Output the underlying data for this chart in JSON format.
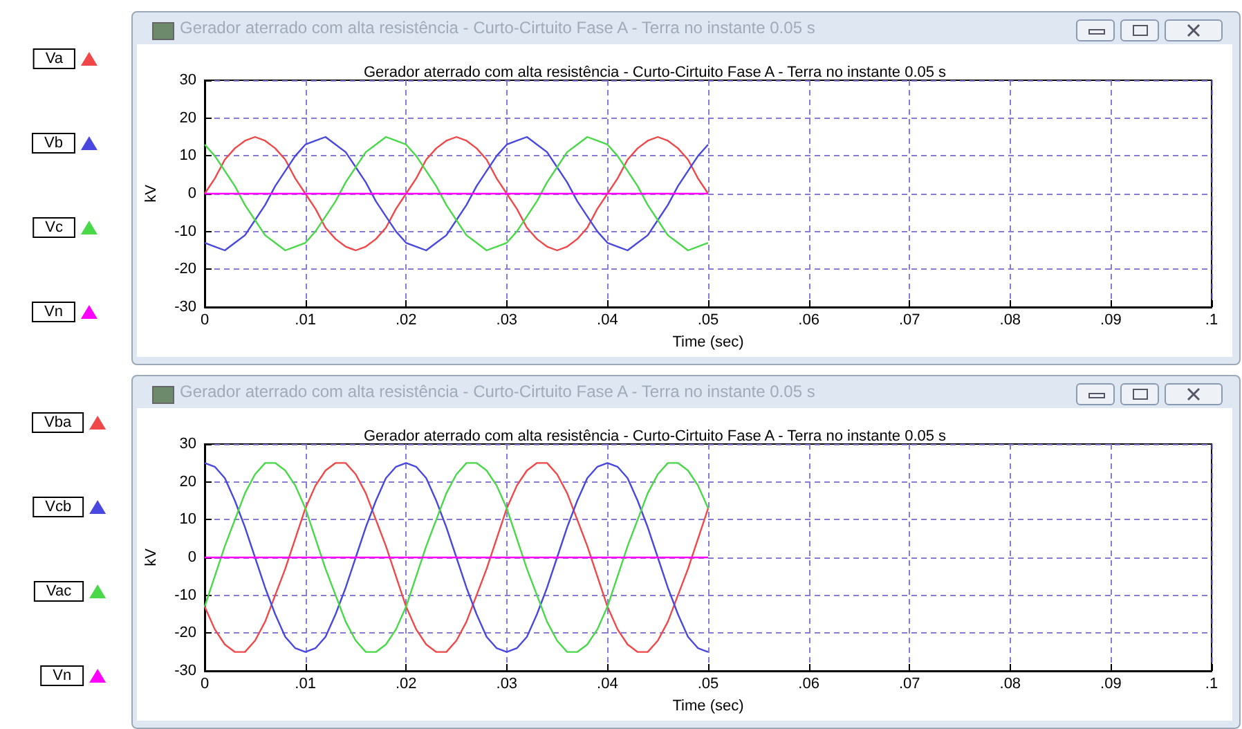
{
  "chart_data": [
    {
      "type": "line",
      "subtitle": "Gerador aterrado com alta resistência - Curto-Cirtuito Fase A - Terra no instante 0.05 s",
      "title": "Gerador aterrado com alta resistência - Curto-Cirtuito Fase A - Terra no instante 0.05 s",
      "xlabel": "Time (sec)",
      "ylabel": "kV",
      "x": [
        0,
        0.001,
        0.002,
        0.003,
        0.004,
        0.005,
        0.006,
        0.007,
        0.008,
        0.009,
        0.01,
        0.011,
        0.012,
        0.013,
        0.014,
        0.015,
        0.016,
        0.017,
        0.018,
        0.019,
        0.02,
        0.021,
        0.022,
        0.023,
        0.024,
        0.025,
        0.026,
        0.027,
        0.028,
        0.029,
        0.03,
        0.031,
        0.032,
        0.033,
        0.034,
        0.035,
        0.036,
        0.037,
        0.038,
        0.039,
        0.04,
        0.041,
        0.042,
        0.043,
        0.044,
        0.045,
        0.046,
        0.047,
        0.048,
        0.049,
        0.05
      ],
      "series": [
        {
          "name": "Va",
          "color": "#f04848",
          "values": [
            0,
            4,
            9,
            12,
            14,
            15,
            14,
            12,
            9,
            4,
            0,
            -4,
            -9,
            -12,
            -14,
            -15,
            -14,
            -12,
            -9,
            -4,
            0,
            4,
            9,
            12,
            14,
            15,
            14,
            12,
            9,
            4,
            0,
            -4,
            -9,
            -12,
            -14,
            -15,
            -14,
            -12,
            -9,
            -4,
            0,
            4,
            9,
            12,
            14,
            15,
            14,
            12,
            9,
            4,
            0
          ]
        },
        {
          "name": "Vb",
          "color": "#4848e0",
          "values": [
            -13,
            -14,
            -15,
            -13,
            -11,
            -7,
            -3,
            2,
            6,
            10,
            13,
            14,
            15,
            13,
            11,
            7,
            3,
            -2,
            -6,
            -10,
            -13,
            -14,
            -15,
            -13,
            -11,
            -7,
            -3,
            2,
            6,
            10,
            13,
            14,
            15,
            13,
            11,
            7,
            3,
            -2,
            -6,
            -10,
            -13,
            -14,
            -15,
            -13,
            -11,
            -7,
            -3,
            2,
            6,
            10,
            13
          ]
        },
        {
          "name": "Vc",
          "color": "#48d848",
          "values": [
            13,
            10,
            6,
            2,
            -3,
            -7,
            -11,
            -13,
            -15,
            -14,
            -13,
            -10,
            -6,
            -2,
            3,
            7,
            11,
            13,
            15,
            14,
            13,
            10,
            6,
            2,
            -3,
            -7,
            -11,
            -13,
            -15,
            -14,
            -13,
            -10,
            -6,
            -2,
            3,
            7,
            11,
            13,
            15,
            14,
            13,
            10,
            6,
            2,
            -3,
            -7,
            -11,
            -13,
            -15,
            -14,
            -13
          ]
        },
        {
          "name": "Vn",
          "color": "#ff00ff",
          "values": [
            0,
            0,
            0,
            0,
            0,
            0,
            0,
            0,
            0,
            0,
            0,
            0,
            0,
            0,
            0,
            0,
            0,
            0,
            0,
            0,
            0,
            0,
            0,
            0,
            0,
            0,
            0,
            0,
            0,
            0,
            0,
            0,
            0,
            0,
            0,
            0,
            0,
            0,
            0,
            0,
            0,
            0,
            0,
            0,
            0,
            0,
            0,
            0,
            0,
            0,
            0
          ]
        }
      ],
      "xlim": [
        0,
        0.1
      ],
      "xticks": [
        0,
        {
          "value": 0.01,
          "label": ".01"
        },
        {
          "value": 0.02,
          "label": ".02"
        },
        {
          "value": 0.03,
          "label": ".03"
        },
        {
          "value": 0.04,
          "label": ".04"
        },
        {
          "value": 0.05,
          "label": ".05"
        },
        {
          "value": 0.06,
          "label": ".06"
        },
        {
          "value": 0.07,
          "label": ".07"
        },
        {
          "value": 0.08,
          "label": ".08"
        },
        {
          "value": 0.09,
          "label": ".09"
        },
        {
          "value": 0.1,
          "label": ".1"
        }
      ],
      "ylim": [
        -30,
        30
      ],
      "yticks": [
        -30,
        -20,
        -10,
        0,
        10,
        20,
        30
      ],
      "grid": true,
      "legend": "left",
      "marker": "none"
    },
    {
      "type": "line",
      "subtitle": "Gerador aterrado com alta resistência - Curto-Cirtuito Fase A - Terra no instante 0.05 s",
      "title": "Gerador aterrado com alta resistência - Curto-Cirtuito Fase A - Terra no instante 0.05 s",
      "xlabel": "Time (sec)",
      "ylabel": "kV",
      "x": [
        0,
        0.001,
        0.002,
        0.003,
        0.004,
        0.005,
        0.006,
        0.007,
        0.008,
        0.009,
        0.01,
        0.011,
        0.012,
        0.013,
        0.014,
        0.015,
        0.016,
        0.017,
        0.018,
        0.019,
        0.02,
        0.021,
        0.022,
        0.023,
        0.024,
        0.025,
        0.026,
        0.027,
        0.028,
        0.029,
        0.03,
        0.031,
        0.032,
        0.033,
        0.034,
        0.035,
        0.036,
        0.037,
        0.038,
        0.039,
        0.04,
        0.041,
        0.042,
        0.043,
        0.044,
        0.045,
        0.046,
        0.047,
        0.048,
        0.049,
        0.05
      ],
      "series": [
        {
          "name": "Vba",
          "color": "#f04848",
          "values": [
            -13,
            -19,
            -23,
            -25,
            -25,
            -22,
            -17,
            -10,
            -3,
            5,
            13,
            19,
            23,
            25,
            25,
            22,
            17,
            10,
            3,
            -5,
            -13,
            -19,
            -23,
            -25,
            -25,
            -22,
            -17,
            -10,
            -3,
            5,
            13,
            19,
            23,
            25,
            25,
            22,
            17,
            10,
            3,
            -5,
            -13,
            -19,
            -23,
            -25,
            -25,
            -22,
            -17,
            -10,
            -3,
            5,
            13
          ]
        },
        {
          "name": "Vcb",
          "color": "#4848e0",
          "values": [
            25,
            24,
            21,
            15,
            8,
            0,
            -8,
            -15,
            -21,
            -24,
            -25,
            -24,
            -21,
            -15,
            -8,
            0,
            8,
            15,
            21,
            24,
            25,
            24,
            21,
            15,
            8,
            0,
            -8,
            -15,
            -21,
            -24,
            -25,
            -24,
            -21,
            -15,
            -8,
            0,
            8,
            15,
            21,
            24,
            25,
            24,
            21,
            15,
            8,
            0,
            -8,
            -15,
            -21,
            -24,
            -25
          ]
        },
        {
          "name": "Vac",
          "color": "#48d848",
          "values": [
            -13,
            -5,
            3,
            10,
            17,
            22,
            25,
            25,
            23,
            19,
            13,
            5,
            -3,
            -10,
            -17,
            -22,
            -25,
            -25,
            -23,
            -19,
            -13,
            -5,
            3,
            10,
            17,
            22,
            25,
            25,
            23,
            19,
            13,
            5,
            -3,
            -10,
            -17,
            -22,
            -25,
            -25,
            -23,
            -19,
            -13,
            -5,
            3,
            10,
            17,
            22,
            25,
            25,
            23,
            19,
            13
          ]
        },
        {
          "name": "Vn",
          "color": "#ff00ff",
          "values": [
            0,
            0,
            0,
            0,
            0,
            0,
            0,
            0,
            0,
            0,
            0,
            0,
            0,
            0,
            0,
            0,
            0,
            0,
            0,
            0,
            0,
            0,
            0,
            0,
            0,
            0,
            0,
            0,
            0,
            0,
            0,
            0,
            0,
            0,
            0,
            0,
            0,
            0,
            0,
            0,
            0,
            0,
            0,
            0,
            0,
            0,
            0,
            0,
            0,
            0,
            0
          ]
        }
      ],
      "xlim": [
        0,
        0.1
      ],
      "xticks": [
        0,
        {
          "value": 0.01,
          "label": ".01"
        },
        {
          "value": 0.02,
          "label": ".02"
        },
        {
          "value": 0.03,
          "label": ".03"
        },
        {
          "value": 0.04,
          "label": ".04"
        },
        {
          "value": 0.05,
          "label": ".05"
        },
        {
          "value": 0.06,
          "label": ".06"
        },
        {
          "value": 0.07,
          "label": ".07"
        },
        {
          "value": 0.08,
          "label": ".08"
        },
        {
          "value": 0.09,
          "label": ".09"
        },
        {
          "value": 0.1,
          "label": ".1"
        }
      ],
      "ylim": [
        -30,
        30
      ],
      "yticks": [
        -30,
        -20,
        -10,
        0,
        10,
        20,
        30
      ],
      "grid": true,
      "legend": "left",
      "marker": "none"
    }
  ]
}
